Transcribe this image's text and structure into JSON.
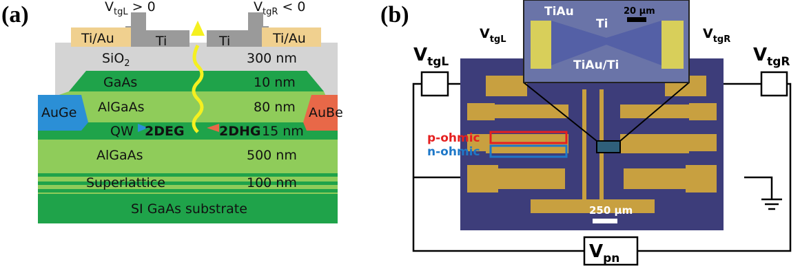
{
  "panel_a": {
    "label": "(a)",
    "gate_left": {
      "main": "V",
      "sub": "tgL",
      "rest": " > 0"
    },
    "gate_right": {
      "main": "V",
      "sub": "tgR",
      "rest": " < 0"
    },
    "contacts": [
      "Ti/Au",
      "Ti/Au"
    ],
    "gates": [
      "Ti",
      "Ti"
    ],
    "oxide": {
      "main": "SiO",
      "sub": "2",
      "thickness": "300 nm"
    },
    "layers": [
      {
        "name": "GaAs",
        "thickness": "10 nm"
      },
      {
        "name": "AlGaAs",
        "thickness": "80 nm"
      },
      {
        "name": "QW",
        "thickness": "15 nm"
      },
      {
        "name": "AlGaAs",
        "thickness": "500 nm"
      },
      {
        "name": "Superlattice",
        "thickness": "100 nm"
      },
      {
        "name": "SI GaAs substrate"
      }
    ],
    "ohmics": [
      "AuGe",
      "AuBe"
    ],
    "gases": [
      "2DEG",
      "2DHG"
    ]
  },
  "panel_b": {
    "label": "(b)",
    "inset": {
      "labels": [
        "TiAu",
        "Ti",
        "TiAu/Ti"
      ],
      "scale_bar": "20 µm",
      "gate_left": {
        "main": "V",
        "sub": "tgL"
      },
      "gate_right": {
        "main": "V",
        "sub": "tgR"
      }
    },
    "circuit": {
      "gate_left": {
        "main": "V",
        "sub": "tgL"
      },
      "gate_right": {
        "main": "V",
        "sub": "tgR"
      },
      "bias": {
        "main": "V",
        "sub": "pn"
      }
    },
    "ohmic_labels": [
      "p-ohmic",
      "n-ohmic"
    ],
    "scale_bar": "250 µm"
  }
}
